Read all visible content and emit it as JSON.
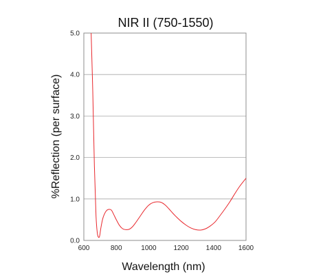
{
  "chart_data": {
    "type": "line",
    "title": "NIR II (750-1550)",
    "xlabel": "Wavelength (nm)",
    "ylabel": "%Reflection (per surface)",
    "xlim": [
      600,
      1600
    ],
    "ylim": [
      0.0,
      5.0
    ],
    "xticks": [
      600,
      800,
      1000,
      1200,
      1400,
      1600
    ],
    "yticks": [
      0.0,
      1.0,
      2.0,
      3.0,
      4.0,
      5.0
    ],
    "xtick_labels": [
      "600",
      "800",
      "1000",
      "1200",
      "1400",
      "1600"
    ],
    "ytick_labels": [
      "0.0",
      "1.0",
      "2.0",
      "3.0",
      "4.0",
      "5.0"
    ],
    "grid": "horizontal",
    "line_color": "#e8262b",
    "series": [
      {
        "x": [
          645,
          655,
          665,
          675,
          683,
          690,
          697,
          705,
          715,
          725,
          740,
          755,
          770,
          785,
          800,
          820,
          840,
          860,
          880,
          900,
          920,
          950,
          975,
          1000,
          1025,
          1050,
          1075,
          1100,
          1125,
          1150,
          1175,
          1200,
          1230,
          1260,
          1290,
          1320,
          1350,
          1380,
          1410,
          1440,
          1470,
          1500,
          1530,
          1560,
          1600
        ],
        "y": [
          5.0,
          3.6,
          1.8,
          0.6,
          0.18,
          0.08,
          0.1,
          0.3,
          0.5,
          0.62,
          0.72,
          0.75,
          0.73,
          0.62,
          0.5,
          0.36,
          0.28,
          0.26,
          0.27,
          0.33,
          0.43,
          0.6,
          0.74,
          0.85,
          0.91,
          0.93,
          0.92,
          0.86,
          0.76,
          0.65,
          0.55,
          0.46,
          0.37,
          0.3,
          0.26,
          0.25,
          0.28,
          0.35,
          0.45,
          0.6,
          0.76,
          0.93,
          1.12,
          1.3,
          1.5
        ]
      }
    ]
  }
}
